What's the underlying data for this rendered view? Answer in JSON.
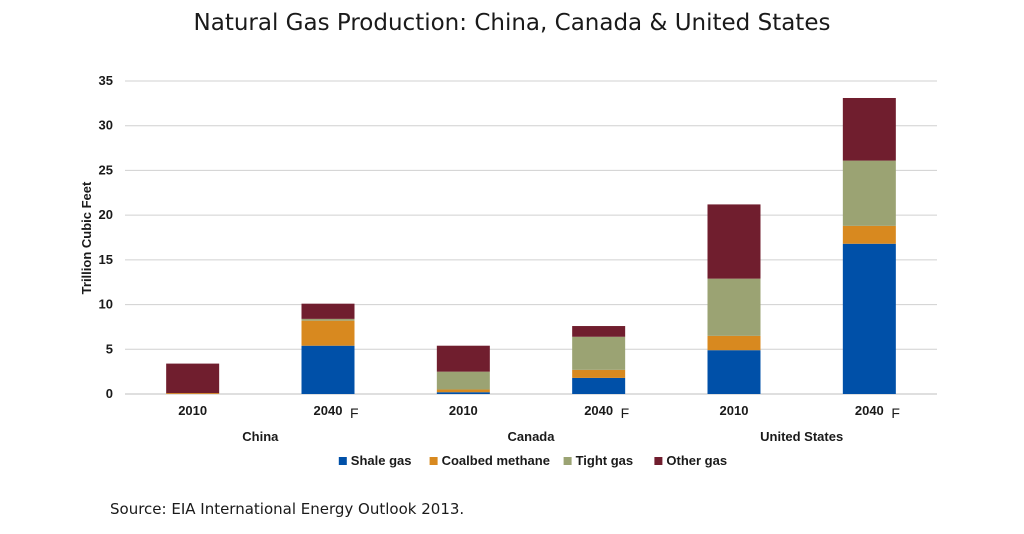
{
  "title": "Natural Gas Production: China, Canada & United States",
  "source": "Source: EIA International Energy Outlook 2013.",
  "chart_data": {
    "type": "bar",
    "stacked": true,
    "ylabel": "Trillion Cubic Feet",
    "ylim": [
      0,
      35
    ],
    "yticks": [
      0,
      5,
      10,
      15,
      20,
      25,
      30,
      35
    ],
    "grid": true,
    "legend_position": "bottom",
    "groups": [
      {
        "name": "China",
        "categories": [
          {
            "label": "2010",
            "suffix": ""
          },
          {
            "label": "2040",
            "suffix": "F"
          }
        ]
      },
      {
        "name": "Canada",
        "categories": [
          {
            "label": "2010",
            "suffix": ""
          },
          {
            "label": "2040",
            "suffix": "F"
          }
        ]
      },
      {
        "name": "United States",
        "categories": [
          {
            "label": "2010",
            "suffix": ""
          },
          {
            "label": "2040",
            "suffix": "F"
          }
        ]
      }
    ],
    "series": [
      {
        "name": "Shale gas",
        "color": "#0050A8",
        "values": [
          0.0,
          5.4,
          0.2,
          1.8,
          4.9,
          16.8
        ]
      },
      {
        "name": "Coalbed methane",
        "color": "#D8891F",
        "values": [
          0.1,
          2.8,
          0.3,
          0.9,
          1.6,
          2.0
        ]
      },
      {
        "name": "Tight gas",
        "color": "#9BA373",
        "values": [
          0.0,
          0.2,
          2.0,
          3.7,
          6.4,
          7.3
        ]
      },
      {
        "name": "Other gas",
        "color": "#701E2E",
        "values": [
          3.3,
          1.7,
          2.9,
          1.2,
          8.3,
          7.0
        ]
      }
    ]
  }
}
